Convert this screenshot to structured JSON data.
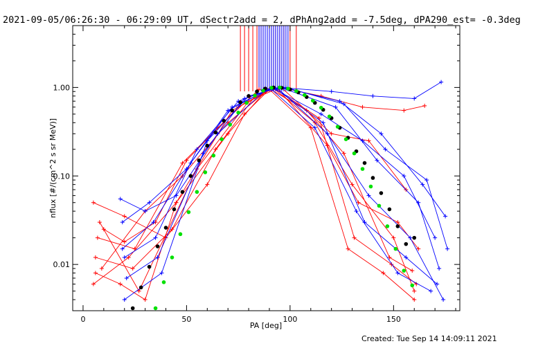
{
  "chart_data": {
    "type": "line",
    "title": "2021-09-05/06:26:30 - 06:29:09 UT, dSectr2add = 2, dPhAng2add = -7.5deg, dPA290_est= -0.3deg",
    "xlabel": "PA [deg]",
    "ylabel": "nflux [#/(cm^2 s sr MeV)]",
    "xlim": [
      -5,
      182
    ],
    "ylim": [
      0.003,
      5.0
    ],
    "yscale": "log",
    "x_ticks": [
      0,
      50,
      100,
      150
    ],
    "x_tick_labels": [
      "0",
      "50",
      "100",
      "150"
    ],
    "y_ticks": [
      0.01,
      0.1,
      1.0
    ],
    "y_tick_labels": [
      "0.01",
      "0.10",
      "1.00"
    ],
    "grid": false,
    "colors": {
      "red": "#ff0000",
      "blue": "#0000ff",
      "black": "#000000",
      "green": "#00e000"
    },
    "series": [
      {
        "color": "red",
        "kind": "lines-crosses",
        "x": [
          5,
          20,
          40,
          60,
          78,
          90
        ],
        "y": [
          0.05,
          0.035,
          0.02,
          0.08,
          0.5,
          0.95
        ]
      },
      {
        "color": "red",
        "kind": "lines-crosses",
        "x": [
          6,
          18,
          30,
          45,
          70,
          88
        ],
        "y": [
          0.008,
          0.006,
          0.004,
          0.05,
          0.3,
          0.9
        ]
      },
      {
        "color": "red",
        "kind": "lines-crosses",
        "x": [
          7,
          25,
          48,
          65,
          85
        ],
        "y": [
          0.02,
          0.015,
          0.14,
          0.35,
          0.95
        ]
      },
      {
        "color": "red",
        "kind": "lines-crosses",
        "x": [
          5,
          22,
          45,
          72,
          92
        ],
        "y": [
          0.006,
          0.012,
          0.05,
          0.55,
          0.98
        ]
      },
      {
        "color": "red",
        "kind": "lines-crosses",
        "x": [
          8,
          27,
          55,
          80,
          95
        ],
        "y": [
          0.03,
          0.005,
          0.12,
          0.7,
          1.0
        ]
      },
      {
        "color": "red",
        "kind": "lines-crosses",
        "x": [
          10,
          20,
          35,
          50,
          75,
          90
        ],
        "y": [
          0.025,
          0.018,
          0.03,
          0.15,
          0.6,
          0.95
        ]
      },
      {
        "color": "red",
        "kind": "lines-crosses",
        "x": [
          6,
          24,
          43,
          64,
          84
        ],
        "y": [
          0.012,
          0.009,
          0.025,
          0.2,
          0.85
        ]
      },
      {
        "color": "red",
        "kind": "lines-crosses",
        "x": [
          9,
          30,
          48,
          70,
          90
        ],
        "y": [
          0.009,
          0.04,
          0.1,
          0.4,
          0.97
        ]
      },
      {
        "color": "red",
        "kind": "lines-crosses",
        "x": [
          95,
          115,
          135,
          155,
          165
        ],
        "y": [
          1.0,
          0.8,
          0.6,
          0.55,
          0.62
        ]
      },
      {
        "color": "red",
        "kind": "lines-crosses",
        "x": [
          92,
          112,
          130,
          150,
          160
        ],
        "y": [
          0.98,
          0.4,
          0.08,
          0.02,
          0.005
        ]
      },
      {
        "color": "red",
        "kind": "lines-crosses",
        "x": [
          90,
          110,
          128,
          145,
          160
        ],
        "y": [
          0.95,
          0.35,
          0.015,
          0.008,
          0.004
        ]
      },
      {
        "color": "red",
        "kind": "lines-crosses",
        "x": [
          94,
          118,
          133,
          152,
          162
        ],
        "y": [
          0.97,
          0.22,
          0.05,
          0.03,
          0.015
        ]
      },
      {
        "color": "red",
        "kind": "lines-crosses",
        "x": [
          96,
          120,
          138,
          156
        ],
        "y": [
          0.99,
          0.3,
          0.25,
          0.07
        ]
      },
      {
        "color": "red",
        "kind": "lines-crosses",
        "x": [
          93,
          114,
          131,
          149,
          161
        ],
        "y": [
          0.96,
          0.45,
          0.02,
          0.01,
          0.006
        ]
      },
      {
        "color": "red",
        "kind": "lines-crosses",
        "x": [
          91,
          108,
          126,
          148,
          159
        ],
        "y": [
          0.94,
          0.55,
          0.18,
          0.012,
          0.0085
        ]
      },
      {
        "color": "blue",
        "kind": "lines-crosses",
        "x": [
          20,
          35,
          55,
          75,
          92
        ],
        "y": [
          0.012,
          0.02,
          0.2,
          0.7,
          0.98
        ]
      },
      {
        "color": "blue",
        "kind": "lines-crosses",
        "x": [
          19,
          32,
          50,
          70,
          90
        ],
        "y": [
          0.03,
          0.05,
          0.12,
          0.55,
          0.96
        ]
      },
      {
        "color": "blue",
        "kind": "lines-crosses",
        "x": [
          20,
          38,
          60,
          80,
          95
        ],
        "y": [
          0.004,
          0.008,
          0.25,
          0.8,
          1.0
        ]
      },
      {
        "color": "blue",
        "kind": "lines-crosses",
        "x": [
          18,
          30,
          45,
          65,
          88
        ],
        "y": [
          0.055,
          0.04,
          0.06,
          0.3,
          0.93
        ]
      },
      {
        "color": "blue",
        "kind": "lines-crosses",
        "x": [
          21,
          36,
          58,
          78,
          93
        ],
        "y": [
          0.007,
          0.012,
          0.18,
          0.75,
          0.99
        ]
      },
      {
        "color": "blue",
        "kind": "lines-crosses",
        "x": [
          19,
          34,
          52,
          72,
          91
        ],
        "y": [
          0.015,
          0.03,
          0.14,
          0.6,
          0.97
        ]
      },
      {
        "color": "blue",
        "kind": "lines-crosses",
        "x": [
          95,
          120,
          140,
          160,
          173
        ],
        "y": [
          1.0,
          0.9,
          0.8,
          0.75,
          1.15
        ]
      },
      {
        "color": "blue",
        "kind": "lines-crosses",
        "x": [
          92,
          115,
          135,
          155,
          170
        ],
        "y": [
          0.97,
          0.5,
          0.25,
          0.1,
          0.02
        ]
      },
      {
        "color": "blue",
        "kind": "lines-crosses",
        "x": [
          94,
          118,
          138,
          158,
          174
        ],
        "y": [
          0.98,
          0.3,
          0.06,
          0.02,
          0.004
        ]
      },
      {
        "color": "blue",
        "kind": "lines-crosses",
        "x": [
          96,
          122,
          142,
          162,
          172
        ],
        "y": [
          0.99,
          0.6,
          0.15,
          0.05,
          0.009
        ]
      },
      {
        "color": "blue",
        "kind": "lines-crosses",
        "x": [
          93,
          116,
          136,
          156,
          171
        ],
        "y": [
          0.96,
          0.4,
          0.03,
          0.012,
          0.006
        ]
      },
      {
        "color": "blue",
        "kind": "lines-crosses",
        "x": [
          97,
          124,
          144,
          164,
          175
        ],
        "y": [
          0.99,
          0.7,
          0.3,
          0.08,
          0.035
        ]
      },
      {
        "color": "blue",
        "kind": "lines-crosses",
        "x": [
          91,
          112,
          132,
          152,
          168
        ],
        "y": [
          0.95,
          0.35,
          0.04,
          0.008,
          0.005
        ]
      },
      {
        "color": "blue",
        "kind": "lines-crosses",
        "x": [
          98,
          126,
          146,
          166,
          176
        ],
        "y": [
          1.0,
          0.65,
          0.2,
          0.09,
          0.015
        ]
      },
      {
        "color": "black",
        "kind": "dots",
        "x": [
          24,
          28,
          32,
          36,
          40,
          44,
          48,
          52,
          56,
          60,
          64,
          68,
          72,
          76,
          80,
          84,
          88,
          92,
          96,
          100,
          104,
          108,
          112,
          116,
          120,
          124,
          128,
          132,
          136,
          140,
          144,
          148,
          152,
          156,
          160
        ],
        "y": [
          0.0032,
          0.0055,
          0.0094,
          0.016,
          0.026,
          0.042,
          0.066,
          0.1,
          0.15,
          0.22,
          0.31,
          0.42,
          0.55,
          0.68,
          0.8,
          0.9,
          0.97,
          1.0,
          0.99,
          0.95,
          0.88,
          0.78,
          0.67,
          0.56,
          0.45,
          0.35,
          0.27,
          0.19,
          0.14,
          0.095,
          0.064,
          0.042,
          0.027,
          0.017,
          0.02
        ]
      },
      {
        "color": "green",
        "kind": "dots",
        "x": [
          35,
          39,
          43,
          47,
          51,
          55,
          59,
          63,
          67,
          71,
          75,
          79,
          83,
          87,
          91,
          95,
          99,
          103,
          107,
          111,
          115,
          119,
          123,
          127,
          131,
          135,
          139,
          143,
          147,
          151,
          155,
          159
        ],
        "y": [
          0.0032,
          0.0063,
          0.012,
          0.022,
          0.039,
          0.066,
          0.11,
          0.17,
          0.26,
          0.38,
          0.52,
          0.67,
          0.81,
          0.92,
          0.99,
          1.0,
          0.97,
          0.91,
          0.82,
          0.71,
          0.59,
          0.47,
          0.36,
          0.26,
          0.18,
          0.12,
          0.076,
          0.046,
          0.027,
          0.015,
          0.0085,
          0.0058
        ]
      }
    ],
    "vertical_lines": [
      {
        "color": "red",
        "x": [
          76,
          78,
          80,
          82,
          84,
          85,
          86,
          87,
          88,
          89,
          90,
          91,
          92,
          93,
          95,
          97,
          100,
          103
        ]
      },
      {
        "color": "blue",
        "x": [
          85,
          86,
          87,
          88,
          89,
          90,
          91,
          92,
          93,
          94,
          95,
          96,
          97,
          98,
          99
        ]
      }
    ]
  },
  "footer": {
    "created_text": "Created: Tue Sep 14 14:09:11 2021"
  }
}
